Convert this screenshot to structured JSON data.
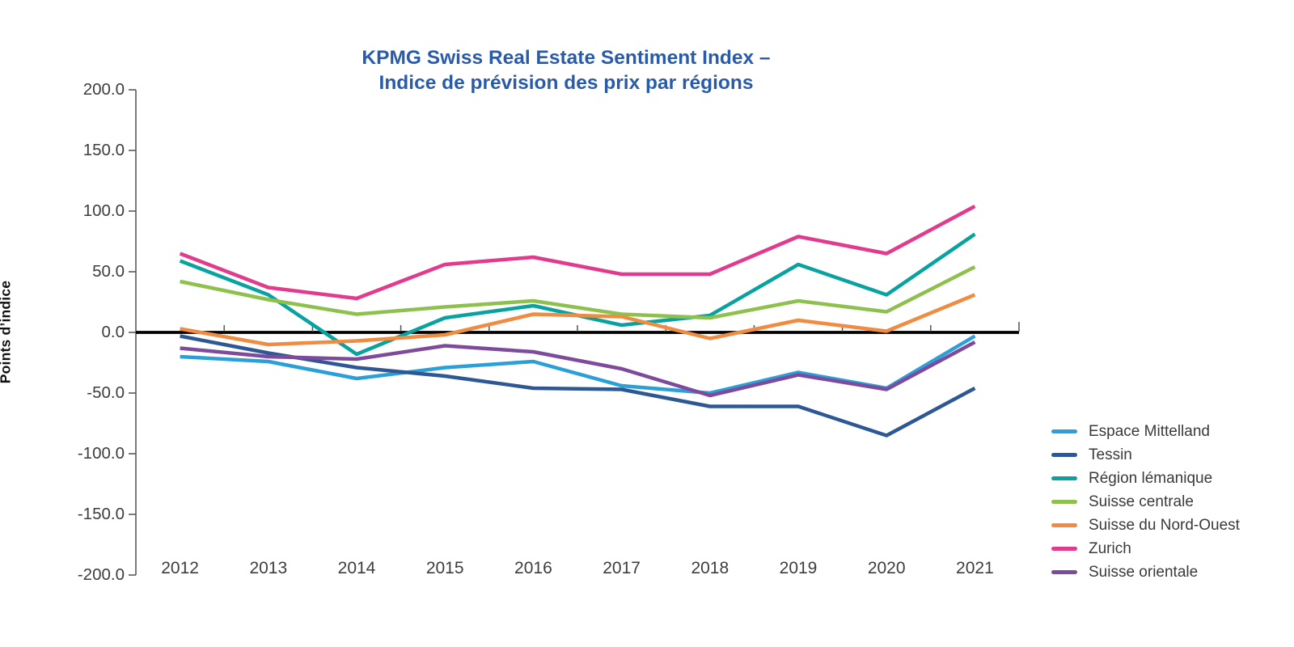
{
  "chart_data": {
    "type": "line",
    "title_line1": "KPMG Swiss Real Estate Sentiment Index –",
    "title_line2": "Indice de prévision des prix par régions",
    "title_color": "#2A5BA8",
    "ylabel": "Points d’indice",
    "categories": [
      "2012",
      "2013",
      "2014",
      "2015",
      "2016",
      "2017",
      "2018",
      "2019",
      "2020",
      "2021"
    ],
    "y_tick_labels": [
      "200.0",
      "150.0",
      "100.0",
      "50.0",
      "0.0",
      "-50.0",
      "-100.0",
      "-150.0",
      "-200.0"
    ],
    "ylim": [
      -200,
      200
    ],
    "grid": false,
    "legend_position": "bottom-right",
    "zero_line_color": "#000000",
    "axis_color": "#5a5a5a",
    "series": [
      {
        "name": "Espace Mittelland",
        "color": "#2B9FD8",
        "values": [
          -20,
          -24,
          -38,
          -29,
          -24,
          -44,
          -50,
          -33,
          -46,
          -3
        ]
      },
      {
        "name": "Tessin",
        "color": "#2D5894",
        "values": [
          -3,
          -17,
          -29,
          -36,
          -46,
          -47,
          -61,
          -61,
          -85,
          -46
        ]
      },
      {
        "name": "Région lémanique",
        "color": "#0AA2A0",
        "values": [
          59,
          31,
          -18,
          12,
          22,
          6,
          14,
          56,
          31,
          81
        ]
      },
      {
        "name": "Suisse centrale",
        "color": "#8EC04E",
        "values": [
          42,
          27,
          15,
          21,
          26,
          15,
          12,
          26,
          17,
          54
        ]
      },
      {
        "name": "Suisse du Nord-Ouest",
        "color": "#F08B42",
        "values": [
          3,
          -10,
          -7,
          -2,
          15,
          13,
          -5,
          10,
          1,
          31
        ]
      },
      {
        "name": "Zurich",
        "color": "#E23A8C",
        "values": [
          65,
          37,
          28,
          56,
          62,
          48,
          48,
          79,
          65,
          104
        ]
      },
      {
        "name": "Suisse orientale",
        "color": "#7D4A9C",
        "values": [
          -13,
          -20,
          -22,
          -11,
          -16,
          -30,
          -52,
          -35,
          -47,
          -8
        ]
      }
    ]
  }
}
